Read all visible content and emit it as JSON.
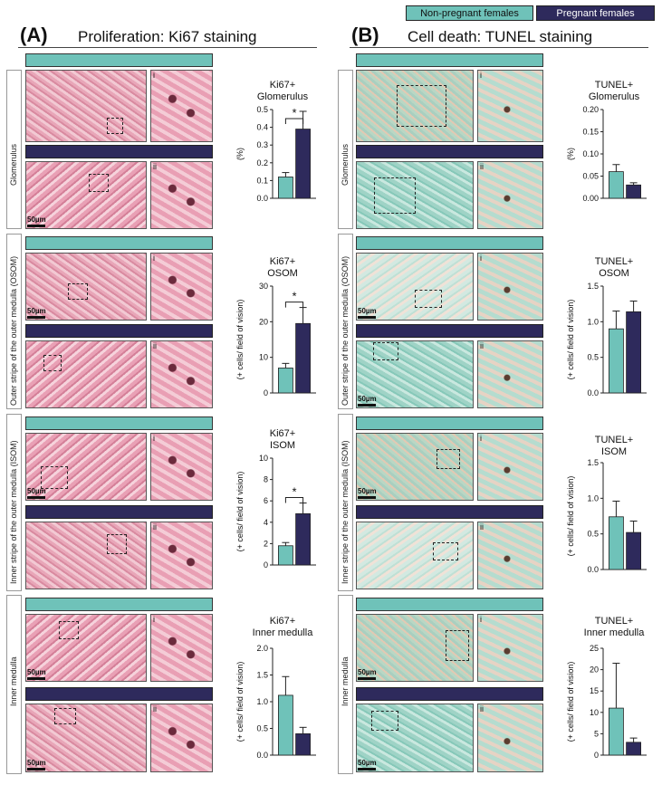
{
  "legend": {
    "non_pregnant": "Non-pregnant females",
    "pregnant": "Pregnant females",
    "colors": {
      "non_pregnant": "#6fc2b9",
      "pregnant": "#2e2a5c"
    }
  },
  "panelA": {
    "letter": "(A)",
    "title": "Proliferation: Ki67 staining"
  },
  "panelB": {
    "letter": "(B)",
    "title": "Cell death: TUNEL staining"
  },
  "regions": {
    "glomerulus": "Glomerulus",
    "osom": "Outer stripe of the outer medulla (OSOM)",
    "isom": "Inner stripe of the outer medulla (ISOM)",
    "inner_medulla": "Inner medulla"
  },
  "inset_labels": {
    "i": "i",
    "ii": "ii"
  },
  "scale_bar": "50µm",
  "chart_data": [
    {
      "id": "a1",
      "type": "bar",
      "title_line1": "Ki67+",
      "title_line2": "Glomerulus",
      "ylabel": "(%)",
      "yticks": [
        "0.0",
        "0.1",
        "0.2",
        "0.3",
        "0.4",
        "0.5"
      ],
      "ylim": [
        0,
        0.5
      ],
      "categories": [
        "Non-pregnant females",
        "Pregnant females"
      ],
      "values": [
        0.12,
        0.39
      ],
      "errors": [
        0.025,
        0.1
      ],
      "significance": "*"
    },
    {
      "id": "a2",
      "type": "bar",
      "title_line1": "Ki67+",
      "title_line2": "OSOM",
      "ylabel": "(+ cells/ field of vision)",
      "yticks": [
        "0",
        "10",
        "20",
        "30"
      ],
      "ylim": [
        0,
        30
      ],
      "categories": [
        "Non-pregnant females",
        "Pregnant females"
      ],
      "values": [
        7,
        19.5
      ],
      "errors": [
        1.3,
        4.5
      ],
      "significance": "*"
    },
    {
      "id": "a3",
      "type": "bar",
      "title_line1": "Ki67+",
      "title_line2": "ISOM",
      "ylabel": "(+ cells/ field of vision)",
      "yticks": [
        "0",
        "2",
        "4",
        "6",
        "8",
        "10"
      ],
      "ylim": [
        0,
        10
      ],
      "categories": [
        "Non-pregnant females",
        "Pregnant females"
      ],
      "values": [
        1.8,
        4.8
      ],
      "errors": [
        0.3,
        1.0
      ],
      "significance": "*"
    },
    {
      "id": "a4",
      "type": "bar",
      "title_line1": "Ki67+",
      "title_line2": "Inner medulla",
      "ylabel": "(+ cells/ field of vision)",
      "yticks": [
        "0.0",
        "0.5",
        "1.0",
        "1.5",
        "2.0"
      ],
      "ylim": [
        0,
        2
      ],
      "categories": [
        "Non-pregnant females",
        "Pregnant females"
      ],
      "values": [
        1.12,
        0.4
      ],
      "errors": [
        0.35,
        0.12
      ],
      "significance": ""
    },
    {
      "id": "b1",
      "type": "bar",
      "title_line1": "TUNEL+",
      "title_line2": "Glomerulus",
      "ylabel": "(%)",
      "yticks": [
        "0.00",
        "0.05",
        "0.10",
        "0.15",
        "0.20"
      ],
      "ylim": [
        0,
        0.2
      ],
      "categories": [
        "Non-pregnant females",
        "Pregnant females"
      ],
      "values": [
        0.06,
        0.03
      ],
      "errors": [
        0.016,
        0.005
      ],
      "significance": ""
    },
    {
      "id": "b2",
      "type": "bar",
      "title_line1": "TUNEL+",
      "title_line2": "OSOM",
      "ylabel": "(+ cells/ field of vision)",
      "yticks": [
        "0.0",
        "0.5",
        "1.0",
        "1.5"
      ],
      "ylim": [
        0,
        1.5
      ],
      "categories": [
        "Non-pregnant females",
        "Pregnant females"
      ],
      "values": [
        0.9,
        1.14
      ],
      "errors": [
        0.25,
        0.15
      ],
      "significance": ""
    },
    {
      "id": "b3",
      "type": "bar",
      "title_line1": "TUNEL+",
      "title_line2": "ISOM",
      "ylabel": "(+ cells/ field of vision)",
      "yticks": [
        "0.0",
        "0.5",
        "1.0",
        "1.5"
      ],
      "ylim": [
        0,
        1.5
      ],
      "categories": [
        "Non-pregnant females",
        "Pregnant females"
      ],
      "values": [
        0.74,
        0.52
      ],
      "errors": [
        0.22,
        0.16
      ],
      "significance": ""
    },
    {
      "id": "b4",
      "type": "bar",
      "title_line1": "TUNEL+",
      "title_line2": "Inner medulla",
      "ylabel": "(+ cells/ field of vision)",
      "yticks": [
        "0",
        "5",
        "10",
        "15",
        "20",
        "25"
      ],
      "ylim": [
        0,
        25
      ],
      "categories": [
        "Non-pregnant females",
        "Pregnant females"
      ],
      "values": [
        11,
        3
      ],
      "errors": [
        10.5,
        1.0
      ],
      "significance": ""
    }
  ]
}
